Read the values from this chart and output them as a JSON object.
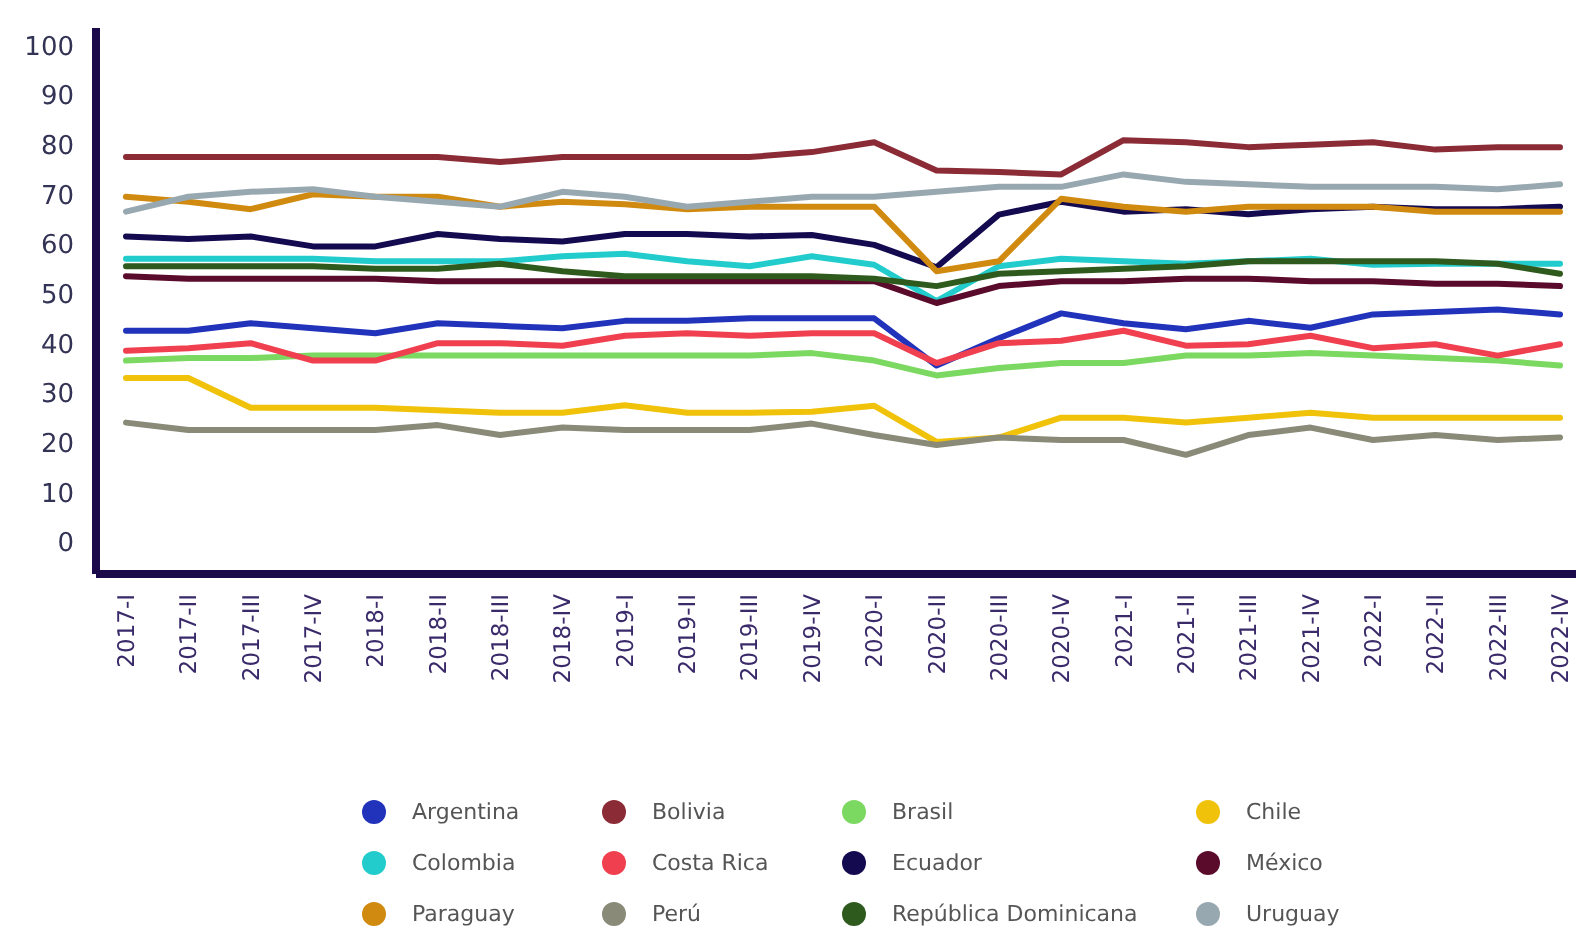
{
  "chart_data": {
    "type": "line",
    "categories": [
      "2017-I",
      "2017-II",
      "2017-III",
      "2017-IV",
      "2018-I",
      "2018-II",
      "2018-III",
      "2018-IV",
      "2019-I",
      "2019-II",
      "2019-III",
      "2019-IV",
      "2020-I",
      "2020-II",
      "2020-III",
      "2020-IV",
      "2021-I",
      "2021-II",
      "2021-III",
      "2021-IV",
      "2022-I",
      "2022-II",
      "2022-III",
      "2022-IV"
    ],
    "ylim": [
      -6,
      104
    ],
    "yticks": [
      0,
      10,
      20,
      30,
      40,
      50,
      60,
      70,
      80,
      90,
      100
    ],
    "grid": false,
    "legend": "bottom",
    "marker": "none",
    "line_style": "solid",
    "series": [
      {
        "name": "Argentina",
        "color": "#2233bb",
        "values": [
          43,
          43,
          44.5,
          43.5,
          42.5,
          44.5,
          44,
          43.5,
          45,
          45,
          45.5,
          45.5,
          45.5,
          36,
          41.5,
          46.5,
          44.5,
          43.3,
          45,
          43.6,
          46.3,
          46.8,
          47.3,
          46.3
        ]
      },
      {
        "name": "Bolivia",
        "color": "#8b2b35",
        "values": [
          78,
          78,
          78,
          78,
          78,
          78,
          77,
          78,
          78,
          78,
          78,
          79,
          81,
          75.3,
          75,
          74.5,
          81.4,
          81,
          80,
          80.5,
          81,
          79.5,
          80,
          80
        ]
      },
      {
        "name": "Brasil",
        "color": "#7bd860",
        "values": [
          37,
          37.5,
          37.5,
          38,
          38,
          38,
          38,
          38,
          38,
          38,
          38,
          38.5,
          37,
          34,
          35.5,
          36.5,
          36.5,
          38,
          38,
          38.5,
          38,
          37.5,
          37,
          36
        ]
      },
      {
        "name": "Chile",
        "color": "#f0c20a",
        "values": [
          33.5,
          33.5,
          27.5,
          27.5,
          27.5,
          27,
          26.5,
          26.5,
          28,
          26.5,
          26.5,
          26.7,
          27.9,
          20.6,
          21.5,
          25.5,
          25.5,
          24.5,
          25.5,
          26.5,
          25.5,
          25.5,
          25.5,
          25.5
        ]
      },
      {
        "name": "Colombia",
        "color": "#22cccc",
        "values": [
          57.5,
          57.5,
          57.5,
          57.5,
          57,
          57,
          57,
          58,
          58.5,
          57,
          56,
          58,
          56.3,
          49,
          56,
          57.5,
          57,
          56.5,
          57,
          57.5,
          56.3,
          56.5,
          56.5,
          56.5
        ]
      },
      {
        "name": "Costa Rica",
        "color": "#f04050",
        "values": [
          39,
          39.5,
          40.5,
          37,
          37,
          40.5,
          40.5,
          40,
          42,
          42.5,
          42,
          42.5,
          42.5,
          36.5,
          40.5,
          41,
          43,
          40,
          40.3,
          42,
          39.5,
          40.3,
          38,
          40.3
        ]
      },
      {
        "name": "Ecuador",
        "color": "#140a50",
        "values": [
          62,
          61.5,
          62,
          60,
          60,
          62.5,
          61.5,
          61,
          62.5,
          62.5,
          62,
          62.3,
          60.3,
          55.8,
          66.4,
          69,
          67,
          67.5,
          66.5,
          67.5,
          68,
          67.5,
          67.5,
          68
        ]
      },
      {
        "name": "México",
        "color": "#5a0a2a",
        "values": [
          54,
          53.5,
          53.5,
          53.5,
          53.5,
          53,
          53,
          53,
          53,
          53,
          53,
          53,
          53,
          48.6,
          52,
          53,
          53,
          53.5,
          53.5,
          53,
          53,
          52.5,
          52.5,
          52
        ]
      },
      {
        "name": "Paraguay",
        "color": "#d08a10",
        "values": [
          70,
          69,
          67.5,
          70.5,
          70,
          70,
          68,
          69,
          68.5,
          67.5,
          68,
          68,
          68,
          55,
          57,
          69.6,
          68,
          67,
          68,
          68,
          68,
          67,
          67,
          67
        ]
      },
      {
        "name": "Perú",
        "color": "#8a8a78",
        "values": [
          24.5,
          23,
          23,
          23,
          23,
          24,
          22,
          23.5,
          23,
          23,
          23,
          24.3,
          22,
          20,
          21.5,
          21,
          21,
          18,
          22,
          23.5,
          21,
          22,
          21,
          21.5
        ]
      },
      {
        "name": "República Dominicana",
        "color": "#2e5a1e",
        "values": [
          56,
          56,
          56,
          56,
          55.5,
          55.5,
          56.5,
          55,
          54,
          54,
          54,
          54,
          53.5,
          52,
          54.5,
          55,
          55.5,
          56,
          57,
          57,
          57,
          57,
          56.5,
          54.5
        ]
      },
      {
        "name": "Uruguay",
        "color": "#98a8b0",
        "values": [
          67,
          70,
          71,
          71.5,
          70,
          69,
          68,
          71,
          70,
          68,
          69,
          70,
          70,
          71,
          72,
          72,
          74.5,
          73,
          72.5,
          72,
          72,
          72,
          71.5,
          72.5
        ]
      }
    ]
  }
}
